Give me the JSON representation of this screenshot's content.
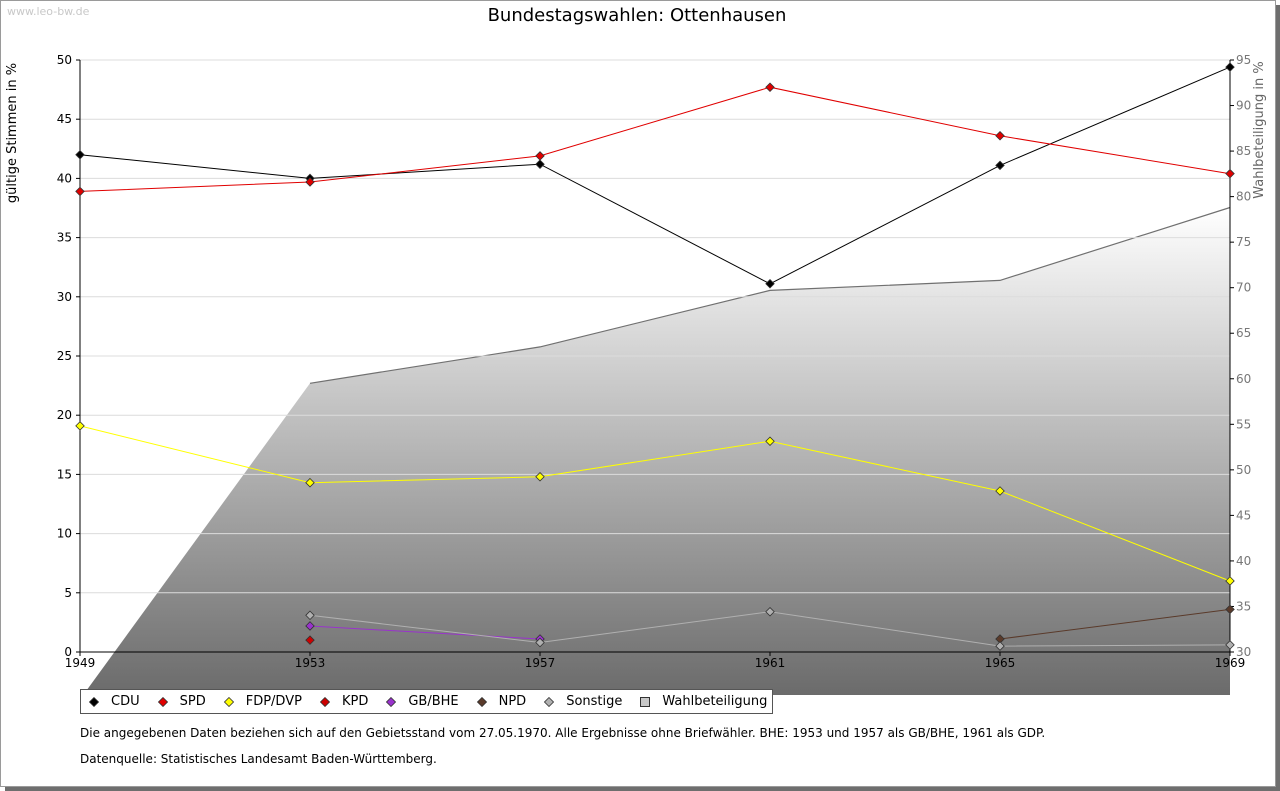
{
  "watermark": "www.leo-bw.de",
  "chart_data": {
    "type": "line",
    "title": "Bundestagswahlen: Ottenhausen",
    "ylabel": "gültige Stimmen in %",
    "y2label": "Wahlbeteiligung in %",
    "categories": [
      "1949",
      "1953",
      "1957",
      "1961",
      "1965",
      "1969"
    ],
    "ylim": [
      0,
      50
    ],
    "y2lim": [
      30,
      95
    ],
    "yticks": [
      "0",
      "5",
      "10",
      "15",
      "20",
      "25",
      "30",
      "35",
      "40",
      "45",
      "50"
    ],
    "y2ticks": [
      "30",
      "35",
      "40",
      "45",
      "50",
      "55",
      "60",
      "65",
      "70",
      "75",
      "80",
      "85",
      "90",
      "95"
    ],
    "grid": true,
    "series": [
      {
        "name": "CDU",
        "color": "#000000",
        "values": [
          42.0,
          40.0,
          41.2,
          31.1,
          41.1,
          49.4
        ]
      },
      {
        "name": "SPD",
        "color": "#e00000",
        "values": [
          38.9,
          39.7,
          41.9,
          47.7,
          43.6,
          40.4
        ]
      },
      {
        "name": "FDP/DVP",
        "color": "#ffff00",
        "values": [
          19.1,
          14.3,
          14.8,
          17.8,
          13.6,
          6.0
        ]
      },
      {
        "name": "KPD",
        "color": "#cc0000",
        "values": [
          null,
          1.0,
          null,
          null,
          null,
          null
        ]
      },
      {
        "name": "GB/BHE",
        "color": "#9933cc",
        "values": [
          null,
          2.2,
          1.1,
          null,
          null,
          null
        ]
      },
      {
        "name": "NPD",
        "color": "#5a3a2a",
        "values": [
          null,
          null,
          null,
          null,
          1.1,
          3.6
        ]
      },
      {
        "name": "Sonstige",
        "color": "#b0b0b0",
        "values": [
          null,
          3.1,
          0.8,
          3.4,
          0.5,
          0.6
        ]
      }
    ],
    "turnout": {
      "name": "Wahlbeteiligung",
      "color": "#a0a0a0",
      "values": [
        24.8,
        59.5,
        63.5,
        69.7,
        70.8,
        78.8
      ]
    }
  },
  "notes": {
    "line1": "Die angegebenen Daten beziehen sich auf den Gebietsstand vom 27.05.1970. Alle Ergebnisse ohne Briefwähler. BHE: 1953 und 1957 als GB/BHE, 1961 als GDP.",
    "line2": "Datenquelle: Statistisches Landesamt Baden-Württemberg."
  }
}
